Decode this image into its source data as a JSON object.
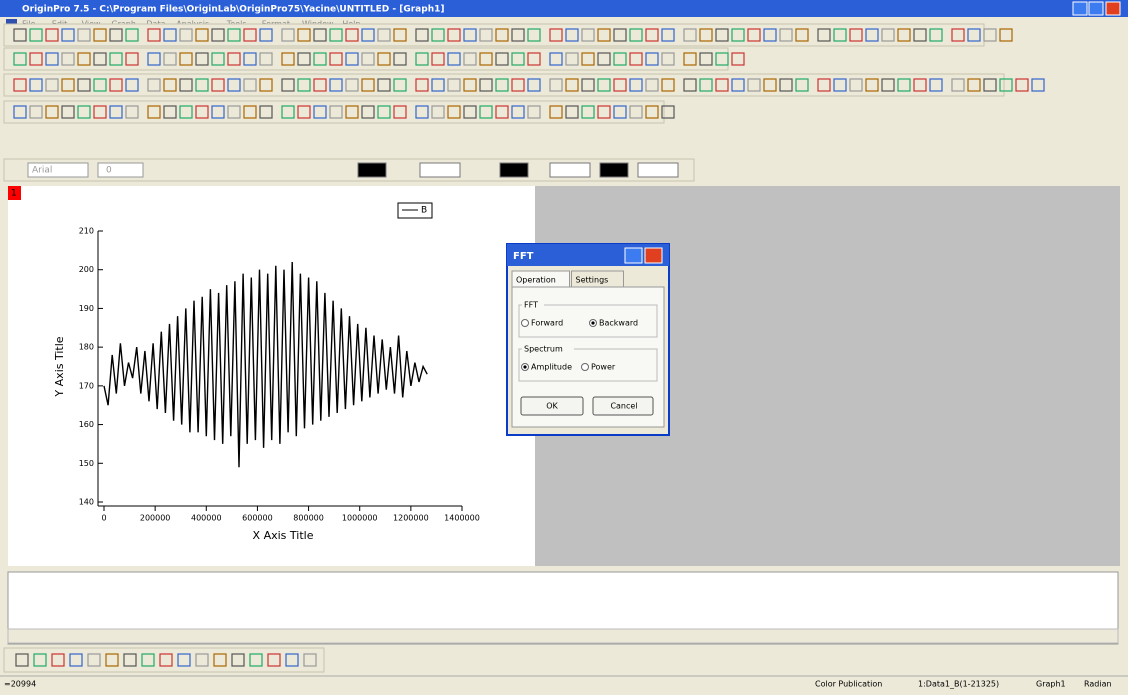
{
  "window": {
    "title": "OriginPro 7.5 - C:\\Program Files\\OriginLab\\OriginPro75\\Yacine\\UNTITLED - [Graph1]"
  },
  "menu": [
    "File",
    "Edit",
    "View",
    "Graph",
    "Data",
    "Analysis",
    "Tools",
    "Format",
    "Window",
    "Help"
  ],
  "font_toolbar": {
    "font": "Arial",
    "size": "0"
  },
  "graph_window": {
    "layer": "1"
  },
  "chart_data": {
    "type": "line",
    "x_label": "X Axis Title",
    "y_label": "Y Axis Title",
    "x": [
      0,
      16000,
      32000,
      48000,
      64000,
      80000,
      96000,
      112000,
      128000,
      144000,
      160000,
      176000,
      192000,
      208000,
      224000,
      240000,
      256000,
      272000,
      288000,
      304000,
      320000,
      336000,
      352000,
      368000,
      384000,
      400000,
      416000,
      432000,
      448000,
      464000,
      480000,
      496000,
      512000,
      528000,
      544000,
      560000,
      576000,
      592000,
      608000,
      624000,
      640000,
      656000,
      672000,
      688000,
      704000,
      720000,
      736000,
      752000,
      768000,
      784000,
      800000,
      816000,
      832000,
      848000,
      864000,
      880000,
      896000,
      912000,
      928000,
      944000,
      960000,
      976000,
      992000,
      1008000,
      1024000,
      1040000,
      1056000,
      1072000,
      1088000,
      1104000,
      1120000,
      1136000,
      1152000,
      1168000,
      1184000,
      1200000,
      1216000,
      1232000,
      1248000,
      1264000
    ],
    "series": [
      {
        "name": "B",
        "color": "#000000",
        "values": [
          170,
          165,
          178,
          168,
          181,
          170,
          176,
          172,
          180,
          168,
          179,
          166,
          181,
          164,
          184,
          163,
          186,
          161,
          188,
          160,
          190,
          158,
          192,
          158,
          193,
          157,
          195,
          156,
          194,
          155,
          196,
          157,
          197,
          149,
          199,
          155,
          198,
          156,
          200,
          154,
          199,
          156,
          201,
          155,
          200,
          158,
          202,
          157,
          199,
          159,
          198,
          160,
          197,
          161,
          194,
          162,
          192,
          163,
          190,
          164,
          188,
          165,
          186,
          166,
          185,
          167,
          183,
          168,
          182,
          169,
          180,
          168,
          183,
          167,
          179,
          170,
          176,
          171,
          175,
          173
        ]
      }
    ],
    "xlim": [
      0,
      1400000
    ],
    "ylim": [
      140,
      210
    ],
    "xticks": [
      0,
      200000,
      400000,
      600000,
      800000,
      1000000,
      1200000,
      1400000
    ],
    "yticks": [
      140,
      150,
      160,
      170,
      180,
      190,
      200,
      210
    ]
  },
  "dialog": {
    "title": "FFT",
    "tabs": [
      "Operation",
      "Settings"
    ],
    "fft_group": {
      "label": "FFT",
      "options": [
        "Forward",
        "Backward"
      ],
      "selected": 1
    },
    "spectrum_group": {
      "label": "Spectrum",
      "options": [
        "Amplitude",
        "Power"
      ],
      "selected": 0
    },
    "buttons": [
      "OK",
      "Cancel"
    ]
  },
  "status_bar": [
    "=20994",
    "Color Publication",
    "1:Data1_B(1-21325)",
    "Graph1",
    "Radian"
  ]
}
